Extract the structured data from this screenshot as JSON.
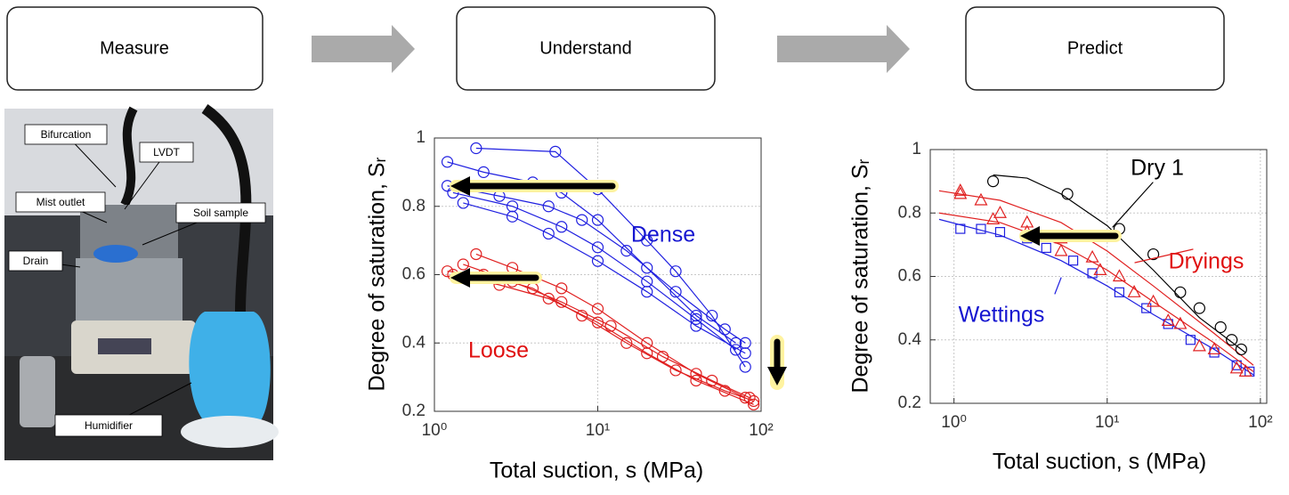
{
  "steps": [
    "Measure",
    "Understand",
    "Predict"
  ],
  "photo": {
    "labels": [
      "Bifurcation",
      "LVDT",
      "Mist outlet",
      "Soil sample",
      "Drain",
      "Humidifier"
    ]
  },
  "chart_data": [
    {
      "type": "scatter",
      "xlabel": "Total suction, s (MPa)",
      "ylabel": "Degree of saturation, Sᵣ",
      "xscale": "log",
      "xlim": [
        1,
        100
      ],
      "ylim": [
        0.2,
        1
      ],
      "xticks": [
        {
          "value": 1,
          "label": "10⁰"
        },
        {
          "value": 10,
          "label": "10¹"
        },
        {
          "value": 100,
          "label": "10²"
        }
      ],
      "yticks": [
        0.2,
        0.4,
        0.6,
        0.8,
        1
      ],
      "grid": true,
      "annotations": [
        {
          "text": "Dense",
          "color": "#1515d0"
        },
        {
          "text": "Loose",
          "color": "#e01010"
        }
      ],
      "series": [
        {
          "color": "#2020e0",
          "marker": "o",
          "line": true,
          "x": [
            1.8,
            5.5,
            10,
            20,
            30,
            50,
            80
          ],
          "values": [
            0.97,
            0.96,
            0.85,
            0.7,
            0.61,
            0.48,
            0.33
          ]
        },
        {
          "color": "#2020e0",
          "marker": "o",
          "line": true,
          "x": [
            1.2,
            2,
            4,
            6,
            10,
            20,
            40,
            70
          ],
          "values": [
            0.93,
            0.9,
            0.87,
            0.84,
            0.76,
            0.62,
            0.48,
            0.4
          ]
        },
        {
          "color": "#2020e0",
          "marker": "o",
          "line": true,
          "x": [
            1.2,
            2.5,
            5,
            8,
            15,
            30,
            60,
            80
          ],
          "values": [
            0.86,
            0.83,
            0.8,
            0.76,
            0.67,
            0.55,
            0.44,
            0.4
          ]
        },
        {
          "color": "#2020e0",
          "marker": "o",
          "line": true,
          "x": [
            1.3,
            3,
            6,
            10,
            20,
            40,
            70
          ],
          "values": [
            0.84,
            0.8,
            0.74,
            0.68,
            0.58,
            0.47,
            0.38
          ]
        },
        {
          "color": "#2020e0",
          "marker": "o",
          "line": true,
          "x": [
            1.5,
            3,
            5,
            10,
            20,
            40,
            80
          ],
          "values": [
            0.81,
            0.77,
            0.72,
            0.64,
            0.55,
            0.45,
            0.37
          ]
        },
        {
          "color": "#e02020",
          "marker": "o",
          "line": true,
          "x": [
            1.2,
            2,
            4,
            8,
            15,
            30,
            60,
            90
          ],
          "values": [
            0.61,
            0.6,
            0.56,
            0.48,
            0.4,
            0.32,
            0.26,
            0.23
          ]
        },
        {
          "color": "#e02020",
          "marker": "o",
          "line": true,
          "x": [
            1.8,
            3,
            6,
            10,
            20,
            40,
            80
          ],
          "values": [
            0.66,
            0.62,
            0.56,
            0.5,
            0.4,
            0.31,
            0.24
          ]
        },
        {
          "color": "#e02020",
          "marker": "o",
          "line": true,
          "x": [
            1.3,
            2.5,
            5,
            10,
            20,
            40,
            90
          ],
          "values": [
            0.6,
            0.57,
            0.53,
            0.46,
            0.37,
            0.29,
            0.22
          ]
        },
        {
          "color": "#e02020",
          "marker": "o",
          "line": true,
          "x": [
            1.5,
            3,
            6,
            12,
            25,
            50,
            85
          ],
          "values": [
            0.63,
            0.58,
            0.52,
            0.45,
            0.36,
            0.29,
            0.24
          ]
        }
      ]
    },
    {
      "type": "scatter",
      "xlabel": "Total suction, s (MPa)",
      "ylabel": "Degree of saturation, Sᵣ",
      "xscale": "log",
      "xlim": [
        0.7,
        110
      ],
      "ylim": [
        0.2,
        1
      ],
      "xticks": [
        {
          "value": 1,
          "label": "10⁰"
        },
        {
          "value": 10,
          "label": "10¹"
        },
        {
          "value": 100,
          "label": "10²"
        }
      ],
      "yticks": [
        0.2,
        0.4,
        0.6,
        0.8,
        1
      ],
      "grid": true,
      "annotations": [
        {
          "text": "Dry 1",
          "color": "#000000"
        },
        {
          "text": "Dryings",
          "color": "#e01010"
        },
        {
          "text": "Wettings",
          "color": "#1515d0"
        }
      ],
      "series": [
        {
          "color": "#2020e0",
          "marker": "s",
          "line": false,
          "x": [
            1.1,
            1.5,
            2,
            3,
            4,
            6,
            8,
            12,
            18,
            25,
            35,
            50,
            70,
            85
          ],
          "values": [
            0.75,
            0.75,
            0.74,
            0.72,
            0.69,
            0.65,
            0.61,
            0.55,
            0.5,
            0.45,
            0.4,
            0.36,
            0.32,
            0.3
          ]
        },
        {
          "color": "#2020e0",
          "line": true,
          "x": [
            0.8,
            2,
            5,
            10,
            20,
            50,
            90
          ],
          "values": [
            0.78,
            0.73,
            0.65,
            0.57,
            0.48,
            0.37,
            0.29
          ]
        },
        {
          "color": "#e02020",
          "marker": "^",
          "line": false,
          "x": [
            1.1,
            1.5,
            2,
            3,
            5,
            8,
            12,
            20,
            30,
            50,
            80
          ],
          "values": [
            0.87,
            0.84,
            0.8,
            0.77,
            0.72,
            0.66,
            0.6,
            0.52,
            0.45,
            0.37,
            0.3
          ]
        },
        {
          "color": "#e02020",
          "marker": "^",
          "line": false,
          "x": [
            1.1,
            1.8,
            3,
            5,
            9,
            15,
            25,
            40,
            70
          ],
          "values": [
            0.86,
            0.78,
            0.74,
            0.68,
            0.62,
            0.55,
            0.46,
            0.38,
            0.31
          ]
        },
        {
          "color": "#e02020",
          "line": true,
          "x": [
            0.8,
            2,
            5,
            10,
            20,
            50,
            90
          ],
          "values": [
            0.87,
            0.84,
            0.77,
            0.68,
            0.57,
            0.42,
            0.32
          ]
        },
        {
          "color": "#e02020",
          "line": true,
          "x": [
            0.8,
            2,
            5,
            10,
            20,
            50,
            90
          ],
          "values": [
            0.8,
            0.77,
            0.7,
            0.62,
            0.52,
            0.39,
            0.3
          ]
        },
        {
          "color": "#000000",
          "marker": "o",
          "line": false,
          "x": [
            1.8,
            5.5,
            12,
            20,
            30,
            40,
            55,
            65,
            75
          ],
          "values": [
            0.9,
            0.86,
            0.75,
            0.67,
            0.55,
            0.5,
            0.44,
            0.4,
            0.37
          ]
        },
        {
          "color": "#000000",
          "line": true,
          "x": [
            1.8,
            3,
            5,
            10,
            20,
            40,
            80
          ],
          "values": [
            0.92,
            0.91,
            0.86,
            0.76,
            0.62,
            0.47,
            0.36
          ]
        }
      ]
    }
  ]
}
